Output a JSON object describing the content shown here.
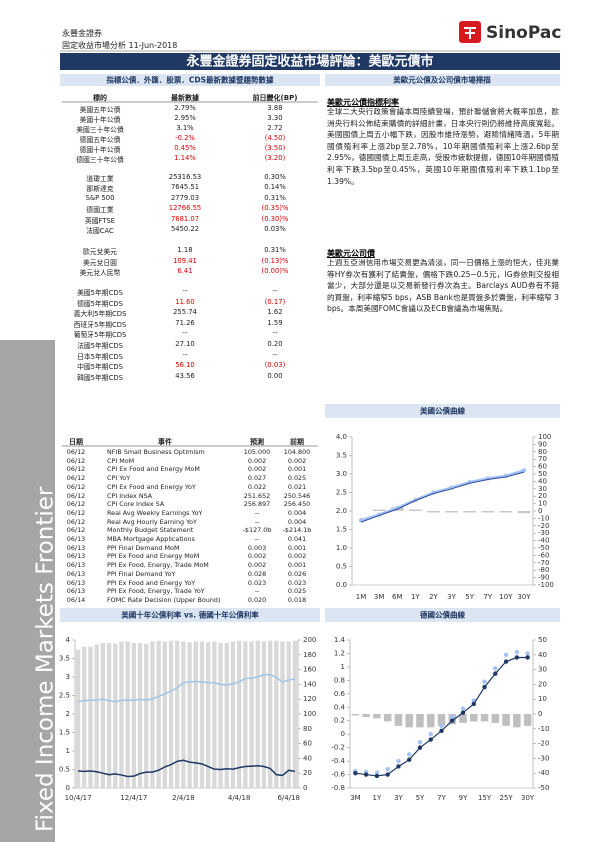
{
  "header": {
    "company": "永豐金證券",
    "subtitle": "固定收益市場分析 11-Jun-2018",
    "logo": "SinoPac"
  },
  "title": "永豐金證券固定收益市場評論：美歐元債市",
  "sidebar": "Fixed Income Markets Frontier",
  "market_table": {
    "title": "指標公債．外匯．股票．CDS最新數據暨趨勢數據",
    "columns": [
      "標的",
      "最新數據",
      "前日變化(BP)"
    ],
    "groups": [
      [
        [
          "美國五年公債",
          "2.79%",
          "3.88"
        ],
        [
          "美國十年公債",
          "2.95%",
          "3.30"
        ],
        [
          "美國三十年公債",
          "3.1%",
          "2.72"
        ],
        [
          "德國五年公債",
          "-0.2%",
          "(4.50)"
        ],
        [
          "德國十年公債",
          "0.45%",
          "(3.50)"
        ],
        [
          "德國三十年公債",
          "1.14%",
          "(3.20)"
        ]
      ],
      [
        [
          "道瓊工業",
          "25316.53",
          "0.30%"
        ],
        [
          "那斯達克",
          "7645.51",
          "0.14%"
        ],
        [
          "S&P 500",
          "2779.03",
          "0.31%"
        ],
        [
          "德國工業",
          "12766.55",
          "(0.35)%"
        ],
        [
          "英國FTSE",
          "7681.07",
          "(0.30)%"
        ],
        [
          "法國CAC",
          "5450.22",
          "0.03%"
        ]
      ],
      [
        [
          "歐元兌美元",
          "1.18",
          "0.31%"
        ],
        [
          "美元兌日圓",
          "109.41",
          "(0.13)%"
        ],
        [
          "美元兌人民幣",
          "6.41",
          "(0.00)%"
        ]
      ],
      [
        [
          "美國5年期CDS",
          "--",
          "--"
        ],
        [
          "德國5年期CDS",
          "11.60",
          "(0.17)"
        ],
        [
          "義大利5年期CDS",
          "255.74",
          "1.62"
        ],
        [
          "西班牙5年期CDS",
          "71.26",
          "1.59"
        ],
        [
          "葡萄牙5年期CDS",
          "--",
          "--"
        ],
        [
          "法國5年期CDS",
          "27.10",
          "0.20"
        ],
        [
          "日本5年期CDS",
          "--",
          "--"
        ],
        [
          "中國5年期CDS",
          "56.10",
          "(0.03)"
        ],
        [
          "韓國5年期CDS",
          "43.56",
          "0.00"
        ]
      ]
    ]
  },
  "commentary": {
    "title": "美歐元公債及公司債市場掃描",
    "sections": [
      {
        "heading": "美歐元公債指標利率",
        "text": "全球二大央行政策會議本周陸續登場，預計聯儲會將大概率加息，歐洲央行料公佈結束購債的詳細計畫，日本央行則仍將維持高度寬鬆。美國國債上周五小幅下跌，因股市維持漲勢，避險情緒降溫，5年期國債殖利率上漲2bp至2.78%，10年期國債殖利率上漲2.6bp至2.95%，德國國債上周五走高，受股市疲軟提振，德國10年期國債殖利率下跌3.5bp至0.45%，英國10年期國債殖利率下跌1.1bp至1.39%。"
      },
      {
        "heading": "美歐元公司債",
        "text": "上週五亞洲信用市場交易更為清淡，同一日價格上漲的恒大，佳兆業等HY券次有獲利了結賣盤，價格下跌0.25~0.5元，IG券依則交投相當少，大部分還是以交易新發行券次為主。Barclays AUD券有不錯的買盤，利率縮窄5 bps，ASB Bank也是買盤多於賣盤，利率縮窄 3 bps。本周美國FOMC會議以及ECB會議為市場焦點。"
      }
    ]
  },
  "calendar": {
    "columns": [
      "日期",
      "事件",
      "預測",
      "前期"
    ],
    "rows": [
      [
        "06/12",
        "NFIB Small Business Optimism",
        "105.000",
        "104.800"
      ],
      [
        "06/12",
        "CPI MoM",
        "0.002",
        "0.002"
      ],
      [
        "06/12",
        "CPI Ex Food and Energy MoM",
        "0.002",
        "0.001"
      ],
      [
        "06/12",
        "CPI YoY",
        "0.027",
        "0.025"
      ],
      [
        "06/12",
        "CPI Ex Food and Energy YoY",
        "0.022",
        "0.021"
      ],
      [
        "06/12",
        "CPI Index NSA",
        "251.652",
        "250.546"
      ],
      [
        "06/12",
        "CPI Core Index SA",
        "256.897",
        "256.450"
      ],
      [
        "06/12",
        "Real Avg Weekly Earnings YoY",
        "--",
        "0.004"
      ],
      [
        "06/12",
        "Real Avg Hourly Earning YoY",
        "--",
        "0.004"
      ],
      [
        "06/12",
        "Monthly Budget Statement",
        "-$127.0b",
        "-$214.1b"
      ],
      [
        "06/13",
        "MBA Mortgage Applications",
        "--",
        "0.041"
      ],
      [
        "06/13",
        "PPI Final Demand MoM",
        "0.003",
        "0.001"
      ],
      [
        "06/13",
        "PPI Ex Food and Energy MoM",
        "0.002",
        "0.002"
      ],
      [
        "06/13",
        "PPI Ex Food, Energy, Trade MoM",
        "0.002",
        "0.001"
      ],
      [
        "06/13",
        "PPI Final Demand YoY",
        "0.028",
        "0.026"
      ],
      [
        "06/13",
        "PPI Ex Food and Energy YoY",
        "0.023",
        "0.023"
      ],
      [
        "06/13",
        "PPI Ex Food, Energy, Trade YoY",
        "--",
        "0.025"
      ],
      [
        "06/14",
        "FOMC Rate Decision (Upper Bound)",
        "0.020",
        "0.018"
      ]
    ]
  },
  "chart_data": [
    {
      "type": "combo",
      "title": "美國公債曲線",
      "categories": [
        "1M",
        "3M",
        "6M",
        "1Y",
        "2Y",
        "3Y",
        "5Y",
        "7Y",
        "10Y",
        "30Y"
      ],
      "series": [
        {
          "type": "bar",
          "axis": "y2",
          "color": "#c8c8c8",
          "values": [
            0,
            2,
            5,
            2,
            -2,
            -2,
            -2,
            -2,
            -2,
            -3
          ]
        },
        {
          "type": "line",
          "color": "#a4c2f4",
          "width": 2.5,
          "marker": true,
          "values": [
            1.75,
            1.9,
            2.08,
            2.3,
            2.5,
            2.63,
            2.78,
            2.88,
            2.95,
            3.1
          ]
        },
        {
          "type": "line",
          "color": "#2e4a9e",
          "width": 1,
          "values": [
            1.7,
            1.88,
            2.05,
            2.28,
            2.47,
            2.6,
            2.75,
            2.85,
            2.92,
            3.05
          ]
        }
      ],
      "ylim": [
        0,
        4
      ],
      "yticks": [
        {
          "value": 0,
          "label": "0.0"
        },
        0.5,
        {
          "value": 1,
          "label": "1.0"
        },
        1.5,
        {
          "value": 2,
          "label": "2.0"
        },
        2.5,
        {
          "value": 3,
          "label": "3.0"
        },
        3.5,
        {
          "value": 4,
          "label": "4.0"
        }
      ],
      "y2lim": [
        -100,
        100
      ],
      "y2ticks": [
        -100,
        -90,
        -80,
        -70,
        -60,
        -50,
        -40,
        -30,
        -20,
        -10,
        0,
        10,
        20,
        30,
        40,
        50,
        60,
        70,
        80,
        90,
        100
      ]
    },
    {
      "type": "combo",
      "title": "美國十年公債利率 vs. 德國十年公債利率",
      "categories": [
        "10/4/17",
        null,
        null,
        null,
        null,
        null,
        null,
        null,
        null,
        "12/4/17",
        null,
        null,
        null,
        null,
        null,
        null,
        null,
        "2/4/18",
        null,
        null,
        null,
        null,
        null,
        null,
        null,
        null,
        "4/4/18",
        null,
        null,
        null,
        null,
        null,
        null,
        null,
        "6/4/18",
        null
      ],
      "series": [
        {
          "type": "bar",
          "axis": "y2",
          "color": "#d9d9d9",
          "values": [
            187,
            191,
            191,
            194,
            196,
            196,
            195,
            198,
            198,
            196,
            196,
            195,
            198,
            199,
            198,
            199,
            199,
            198,
            197,
            198,
            198,
            197,
            198,
            196,
            196,
            198,
            199,
            198,
            198,
            199,
            198,
            199,
            199,
            198,
            198,
            199
          ]
        },
        {
          "type": "line",
          "color": "#9fc5e8",
          "width": 1.5,
          "values": [
            2.33,
            2.36,
            2.37,
            2.38,
            2.4,
            2.36,
            2.33,
            2.37,
            2.38,
            2.37,
            2.4,
            2.38,
            2.41,
            2.47,
            2.55,
            2.62,
            2.71,
            2.84,
            2.87,
            2.88,
            2.86,
            2.85,
            2.84,
            2.8,
            2.78,
            2.82,
            2.87,
            2.96,
            2.97,
            3,
            3.06,
            3.06,
            2.99,
            2.86,
            2.92,
            2.95
          ]
        },
        {
          "type": "line",
          "color": "#1f3864",
          "width": 1.5,
          "values": [
            0.46,
            0.45,
            0.46,
            0.44,
            0.4,
            0.36,
            0.38,
            0.35,
            0.31,
            0.32,
            0.39,
            0.43,
            0.43,
            0.48,
            0.57,
            0.63,
            0.72,
            0.75,
            0.7,
            0.68,
            0.65,
            0.58,
            0.51,
            0.5,
            0.52,
            0.51,
            0.55,
            0.58,
            0.59,
            0.6,
            0.58,
            0.53,
            0.36,
            0.34,
            0.48,
            0.45
          ]
        }
      ],
      "ylim": [
        0,
        4
      ],
      "yticks": [
        0,
        0.5,
        1,
        1.5,
        2,
        2.5,
        3,
        3.5,
        4
      ],
      "y2lim": [
        0,
        200
      ],
      "y2ticks": [
        0,
        20,
        40,
        60,
        80,
        100,
        120,
        140,
        160,
        180,
        200
      ]
    },
    {
      "type": "combo",
      "title": "德國公債曲線",
      "categories": [
        "3M",
        null,
        "1Y",
        null,
        "3Y",
        null,
        "5Y",
        null,
        "7Y",
        null,
        "9Y",
        null,
        "15Y",
        null,
        "25Y",
        null,
        "30Y"
      ],
      "series": [
        {
          "type": "bar",
          "axis": "y2",
          "color": "#bfbfbf",
          "values": [
            -1,
            -2,
            -3,
            -5,
            -8,
            -9,
            -9,
            -9,
            -8,
            -7,
            -6,
            -5,
            -5,
            -6,
            -8,
            -9,
            -8
          ]
        },
        {
          "type": "line",
          "color": "#a4c2f4",
          "width": 0,
          "marker": true,
          "values": [
            -0.55,
            -0.56,
            -0.57,
            -0.52,
            -0.4,
            -0.3,
            -0.12,
            0,
            0.12,
            0.25,
            0.38,
            0.5,
            0.78,
            0.98,
            1.18,
            1.22,
            1.2
          ]
        },
        {
          "type": "line",
          "color": "#1f3864",
          "width": 1.2,
          "marker": true,
          "values": [
            -0.58,
            -0.6,
            -0.62,
            -0.6,
            -0.48,
            -0.38,
            -0.2,
            -0.08,
            0.05,
            0.2,
            0.32,
            0.45,
            0.7,
            0.9,
            1.08,
            1.14,
            1.14
          ]
        }
      ],
      "ylim": [
        -0.8,
        1.4
      ],
      "yticks": [
        -0.8,
        -0.6,
        -0.4,
        -0.2,
        0,
        0.2,
        0.4,
        0.6,
        0.8,
        1,
        1.2,
        1.4
      ],
      "y2lim": [
        -50,
        50
      ],
      "y2ticks": [
        -50,
        -40,
        -30,
        -20,
        -10,
        0,
        10,
        20,
        30,
        40,
        50
      ]
    }
  ]
}
